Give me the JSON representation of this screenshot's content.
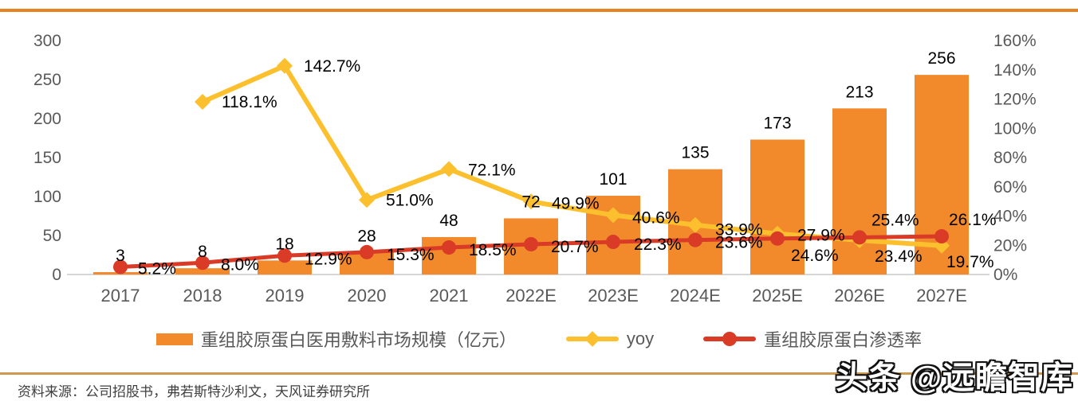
{
  "page": {
    "background": "#ffffff",
    "top_rule_color": "#E8811F",
    "bottom_rule_color": "#CE9A52",
    "axis_text_color": "#595959",
    "baseline_color": "#D6D6D6",
    "label_text_color": "#000000"
  },
  "chart_data": {
    "type": "bar",
    "subtype": "combo-bar-line",
    "title": "",
    "categories": [
      "2017",
      "2018",
      "2019",
      "2020",
      "2021",
      "2022E",
      "2023E",
      "2024E",
      "2025E",
      "2026E",
      "2027E"
    ],
    "series": [
      {
        "name": "重组胶原蛋白医用敷料市场规模（亿元）",
        "type": "bar",
        "axis": "left",
        "color": "#F28A2C",
        "values": [
          3,
          8,
          18,
          28,
          48,
          72,
          101,
          135,
          173,
          213,
          256
        ],
        "labels": [
          "3",
          "8",
          "18",
          "28",
          "48",
          "72",
          "101",
          "135",
          "173",
          "213",
          "256"
        ]
      },
      {
        "name": "yoy",
        "type": "line",
        "marker": "diamond",
        "axis": "right",
        "color": "#FCC02E",
        "values": [
          null,
          118.1,
          142.7,
          51.0,
          72.1,
          49.9,
          40.6,
          33.9,
          27.9,
          23.4,
          19.7
        ],
        "labels": [
          null,
          "118.1%",
          "142.7%",
          "51.0%",
          "72.1%",
          "49.9%",
          "40.6%",
          "33.9%",
          "27.9%",
          "23.4%",
          "19.7%"
        ]
      },
      {
        "name": "重组胶原蛋白渗透率",
        "type": "line",
        "marker": "circle",
        "axis": "right",
        "color": "#D93B27",
        "values": [
          5.2,
          8.0,
          12.9,
          15.3,
          18.5,
          20.7,
          22.3,
          23.6,
          24.6,
          25.4,
          26.1
        ],
        "labels": [
          "5.2%",
          "8.0%",
          "12.9%",
          "15.3%",
          "18.5%",
          "20.7%",
          "22.3%",
          "23.6%",
          "24.6%",
          "25.4%",
          "26.1%"
        ]
      }
    ],
    "left_axis": {
      "min": 0,
      "max": 300,
      "step": 50,
      "ticks": [
        "300",
        "250",
        "200",
        "150",
        "100",
        "50",
        "0"
      ]
    },
    "right_axis": {
      "min": 0,
      "max": 160,
      "step": 20,
      "ticks": [
        "160%",
        "140%",
        "120%",
        "100%",
        "80%",
        "60%",
        "40%",
        "20%",
        "0%"
      ]
    },
    "grid": false,
    "legend_position": "bottom"
  },
  "legend": {
    "items": [
      {
        "label": "重组胶原蛋白医用敷料市场规模（亿元）",
        "swatch": "bar",
        "color": "#F28A2C"
      },
      {
        "label": "yoy",
        "swatch": "line-diamond",
        "color": "#FCC02E"
      },
      {
        "label": "重组胶原蛋白渗透率",
        "swatch": "line-circle",
        "color": "#D93B27"
      }
    ]
  },
  "footer": {
    "source_text": "资料来源：公司招股书，弗若斯特沙利文，天风证券研究所",
    "watermark": "头条 @远瞻智库"
  }
}
